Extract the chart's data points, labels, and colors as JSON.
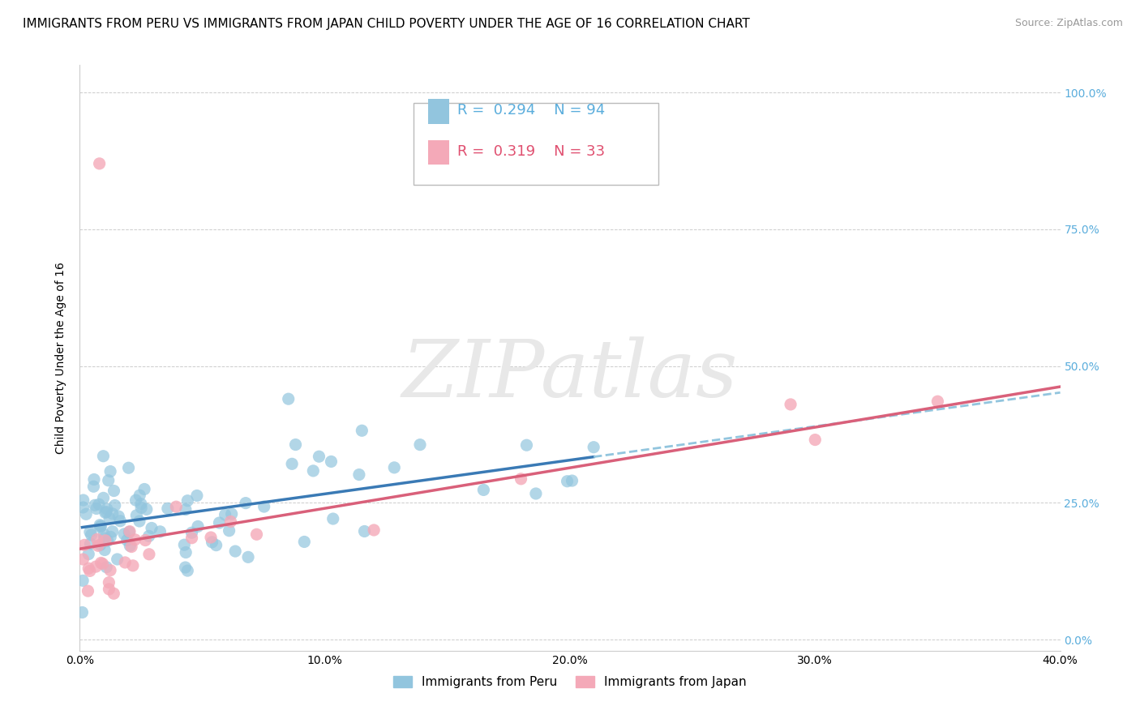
{
  "title": "IMMIGRANTS FROM PERU VS IMMIGRANTS FROM JAPAN CHILD POVERTY UNDER THE AGE OF 16 CORRELATION CHART",
  "source": "Source: ZipAtlas.com",
  "ylabel": "Child Poverty Under the Age of 16",
  "xlim": [
    0.0,
    0.4
  ],
  "ylim": [
    -0.02,
    1.05
  ],
  "yticks": [
    0.0,
    0.25,
    0.5,
    0.75,
    1.0
  ],
  "ytick_labels_right": [
    "0.0%",
    "25.0%",
    "50.0%",
    "75.0%",
    "100.0%"
  ],
  "xticks": [
    0.0,
    0.1,
    0.2,
    0.3,
    0.4
  ],
  "xtick_labels": [
    "0.0%",
    "10.0%",
    "20.0%",
    "30.0%",
    "40.0%"
  ],
  "peru_R": 0.294,
  "peru_N": 94,
  "japan_R": 0.319,
  "japan_N": 33,
  "peru_color": "#92c5de",
  "japan_color": "#f4a9b8",
  "trendline_peru_color": "#3a7ab5",
  "trendline_peru_dashed_color": "#92c5de",
  "trendline_japan_color": "#d9607a",
  "watermark_text": "ZIPatlas",
  "legend_peru": "Immigrants from Peru",
  "legend_japan": "Immigrants from Japan",
  "background_color": "#ffffff",
  "grid_color": "#cccccc",
  "right_axis_color": "#5aaddc",
  "title_fontsize": 11,
  "axis_label_fontsize": 10
}
